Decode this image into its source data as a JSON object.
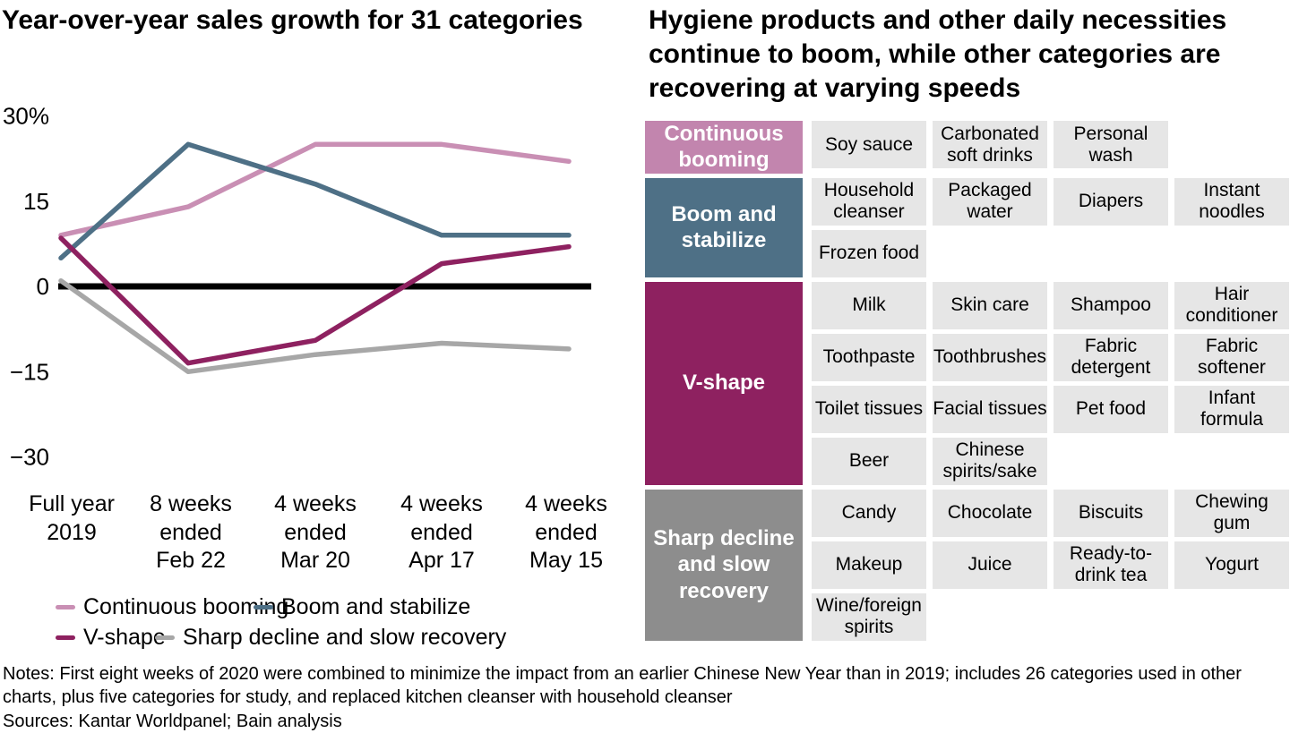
{
  "left_chart": {
    "title": "Year-over-year sales growth for 31 categories"
  },
  "right_panel": {
    "title": "Hygiene products and other daily necessities continue to boom, while other categories are recovering at varying speeds",
    "segments": [
      {
        "label": "Continuous booming",
        "color": "#c285ae",
        "items": [
          "Soy sauce",
          "Carbonated soft drinks",
          "Personal wash"
        ]
      },
      {
        "label": "Boom and stabilize",
        "color": "#4e7086",
        "items": [
          "Household cleanser",
          "Packaged water",
          "Diapers",
          "Instant noodles",
          "Frozen food"
        ]
      },
      {
        "label": "V-shape",
        "color": "#8e2160",
        "items": [
          "Milk",
          "Skin care",
          "Shampoo",
          "Hair conditioner",
          "Toothpaste",
          "Toothbrushes",
          "Fabric detergent",
          "Fabric softener",
          "Toilet tissues",
          "Facial tissues",
          "Pet food",
          "Infant formula",
          "Beer",
          "Chinese spirits/sake"
        ]
      },
      {
        "label": "Sharp decline and slow recovery",
        "color": "#8d8d8d",
        "items": [
          "Candy",
          "Chocolate",
          "Biscuits",
          "Chewing gum",
          "Makeup",
          "Juice",
          "Ready-to-drink tea",
          "Yogurt",
          "Wine/foreign spirits"
        ]
      }
    ]
  },
  "footer": {
    "notes": "Notes: First eight weeks of 2020 were combined to minimize the impact from an earlier Chinese New Year than in 2019; includes 26 categories used in other charts, plus five categories for study, and replaced kitchen cleanser with household cleanser",
    "sources": "Sources: Kantar Worldpanel; Bain analysis"
  },
  "chart_data": {
    "type": "line",
    "title": "Year-over-year sales growth for 31 categories",
    "x_categories": [
      "Full year\n2019",
      "8 weeks\nended\nFeb 22",
      "4 weeks\nended\nMar 20",
      "4 weeks\nended\nApr 17",
      "4 weeks\nended\nMay 15"
    ],
    "y_ticks": [
      30,
      15,
      0,
      -15,
      -30
    ],
    "y_tick_labels": [
      "30%",
      "15",
      "0",
      "−15",
      "−30"
    ],
    "ylim": [
      -33,
      33
    ],
    "unit": "percent year-over-year growth",
    "zero_line": true,
    "grid": false,
    "legend_position": "bottom",
    "series": [
      {
        "name": "Continuous booming",
        "color": "#c98fb4",
        "values": [
          9,
          14,
          25,
          25,
          22
        ]
      },
      {
        "name": "Boom and stabilize",
        "color": "#4e7086",
        "values": [
          5,
          25,
          18,
          9,
          9
        ]
      },
      {
        "name": "V-shape",
        "color": "#8e2160",
        "values": [
          8.5,
          -13.5,
          -9.5,
          4,
          7
        ]
      },
      {
        "name": "Sharp decline and slow recovery",
        "color": "#a7a7a7",
        "values": [
          1,
          -15,
          -12,
          -10,
          -11
        ]
      }
    ]
  }
}
